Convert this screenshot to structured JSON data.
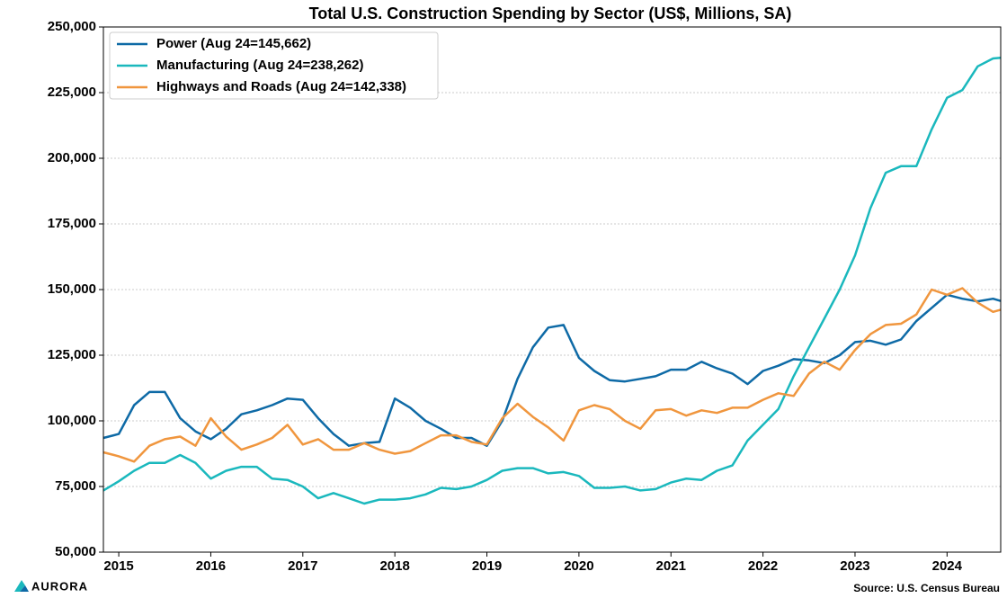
{
  "chart_data": {
    "type": "line",
    "title": "Total U.S. Construction Spending by Sector (US$, Millions, SA)",
    "source": "Source: U.S. Census Bureau",
    "logo": "AURORA",
    "x": [
      2014.833,
      2015,
      2015.167,
      2015.333,
      2015.5,
      2015.667,
      2015.833,
      2016,
      2016.167,
      2016.333,
      2016.5,
      2016.667,
      2016.833,
      2017,
      2017.167,
      2017.333,
      2017.5,
      2017.667,
      2017.833,
      2018,
      2018.167,
      2018.333,
      2018.5,
      2018.667,
      2018.833,
      2019,
      2019.167,
      2019.333,
      2019.5,
      2019.667,
      2019.833,
      2020,
      2020.167,
      2020.333,
      2020.5,
      2020.667,
      2020.833,
      2021,
      2021.167,
      2021.333,
      2021.5,
      2021.667,
      2021.833,
      2022,
      2022.167,
      2022.333,
      2022.5,
      2022.667,
      2022.833,
      2023,
      2023.167,
      2023.333,
      2023.5,
      2023.667,
      2023.833,
      2024,
      2024.167,
      2024.333,
      2024.5,
      2024.583
    ],
    "series": [
      {
        "name": "Power (Aug 24=145,662)",
        "color": "#0e6aa6",
        "values": [
          93500,
          95000,
          106000,
          111000,
          111000,
          101000,
          96000,
          93000,
          97000,
          102500,
          104000,
          106000,
          108500,
          108000,
          101000,
          95000,
          90500,
          91500,
          92000,
          108500,
          105000,
          100000,
          97000,
          93500,
          93500,
          90500,
          100000,
          116000,
          128000,
          135500,
          136500,
          124000,
          119000,
          115500,
          115000,
          116000,
          117000,
          119500,
          119500,
          122500,
          120000,
          118000,
          114000,
          119000,
          121000,
          123500,
          123000,
          122000,
          125000,
          130000,
          130500,
          129000,
          131000,
          138000,
          143000,
          148000,
          146500,
          145500,
          146500,
          145662
        ]
      },
      {
        "name": "Manufacturing (Aug 24=238,262)",
        "color": "#1ab8bd",
        "values": [
          73500,
          77000,
          81000,
          84000,
          84000,
          87000,
          84000,
          78000,
          81000,
          82500,
          82500,
          78000,
          77500,
          75000,
          70500,
          72500,
          70500,
          68500,
          70000,
          70000,
          70500,
          72000,
          74500,
          74000,
          75000,
          77500,
          81000,
          82000,
          82000,
          80000,
          80500,
          79000,
          74500,
          74500,
          75000,
          73500,
          74000,
          76500,
          78000,
          77500,
          81000,
          83000,
          92500,
          98500,
          104500,
          117000,
          128000,
          139000,
          150000,
          163000,
          181000,
          194500,
          197000,
          197000,
          211000,
          223000,
          226000,
          235000,
          238000,
          238262
        ]
      },
      {
        "name": "Highways and Roads (Aug 24=142,338)",
        "color": "#f0963e",
        "values": [
          88000,
          86500,
          84500,
          90500,
          93000,
          94000,
          90500,
          101000,
          94000,
          89000,
          91000,
          93500,
          98500,
          91000,
          93000,
          89000,
          89000,
          91500,
          89000,
          87500,
          88500,
          91500,
          94500,
          94500,
          92000,
          91000,
          101000,
          106500,
          101500,
          97500,
          92500,
          104000,
          106000,
          104500,
          100000,
          97000,
          104000,
          104500,
          102000,
          104000,
          103000,
          105000,
          105000,
          108000,
          110500,
          109500,
          118000,
          122500,
          119500,
          127000,
          133000,
          136500,
          137000,
          140500,
          150000,
          148000,
          150500,
          145000,
          141500,
          142338
        ]
      }
    ],
    "xlim": [
      2014.833,
      2024.583
    ],
    "xticks": [
      2015,
      2016,
      2017,
      2018,
      2019,
      2020,
      2021,
      2022,
      2023,
      2024
    ],
    "ylim": [
      50000,
      250000
    ],
    "yticks": [
      {
        "value": 50000,
        "label": "50,000"
      },
      {
        "value": 75000,
        "label": "75,000"
      },
      {
        "value": 100000,
        "label": "100,000"
      },
      {
        "value": 125000,
        "label": "125,000"
      },
      {
        "value": 150000,
        "label": "150,000"
      },
      {
        "value": 175000,
        "label": "175,000"
      },
      {
        "value": 200000,
        "label": "200,000"
      },
      {
        "value": 225000,
        "label": "225,000"
      },
      {
        "value": 250000,
        "label": "250,000"
      }
    ],
    "grid": true,
    "legend": "upper left"
  }
}
